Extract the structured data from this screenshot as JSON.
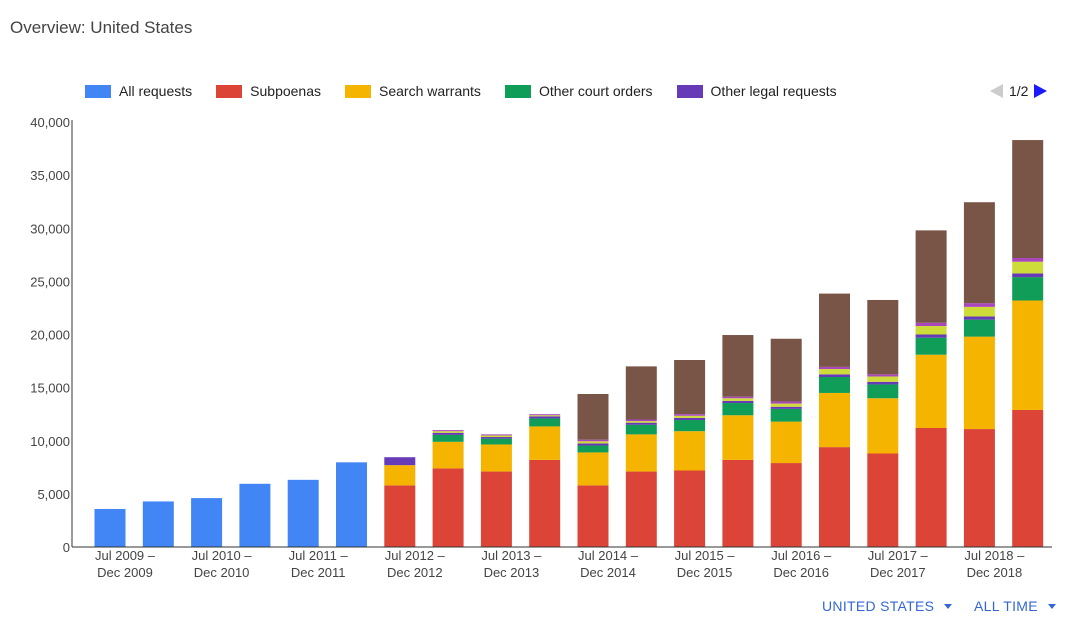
{
  "page": {
    "title": "Overview: United States",
    "pager_text": "1/2",
    "country_button": "UNITED STATES",
    "time_button": "ALL TIME"
  },
  "legend": [
    {
      "name": "All requests",
      "color": "#4285f4"
    },
    {
      "name": "Subpoenas",
      "color": "#db4437"
    },
    {
      "name": "Search warrants",
      "color": "#f4b400"
    },
    {
      "name": "Other court orders",
      "color": "#0f9d58"
    },
    {
      "name": "Other legal requests",
      "color": "#673ab7"
    }
  ],
  "chart_data": {
    "type": "bar",
    "stacked": true,
    "ylim": [
      0,
      40000
    ],
    "yticks": [
      "0",
      "5,000",
      "10,000",
      "15,000",
      "20,000",
      "25,000",
      "30,000",
      "35,000",
      "40,000"
    ],
    "ytick_values": [
      0,
      5000,
      10000,
      15000,
      20000,
      25000,
      30000,
      35000,
      40000
    ],
    "categories": [
      "Jul–Dec 2009",
      "Jan–Jun 2010",
      "Jul–Dec 2010",
      "Jan–Jun 2011",
      "Jul–Dec 2011",
      "Jan–Jun 2012",
      "Jul–Dec 2012",
      "Jan–Jun 2013",
      "Jul–Dec 2013",
      "Jan–Jun 2014",
      "Jul–Dec 2014",
      "Jan–Jun 2015",
      "Jul–Dec 2015",
      "Jan–Jun 2016",
      "Jul–Dec 2016",
      "Jan–Jun 2017",
      "Jul–Dec 2017",
      "Jan–Jun 2018",
      "Jul–Dec 2018",
      "Jan–Jun 2019"
    ],
    "xtick_labels": [
      {
        "index": 0,
        "line1": "Jul 2009 –",
        "line2": "Dec 2009"
      },
      {
        "index": 2,
        "line1": "Jul 2010 –",
        "line2": "Dec 2010"
      },
      {
        "index": 4,
        "line1": "Jul 2011 –",
        "line2": "Dec 2011"
      },
      {
        "index": 6,
        "line1": "Jul 2012 –",
        "line2": "Dec 2012"
      },
      {
        "index": 8,
        "line1": "Jul 2013 –",
        "line2": "Dec 2013"
      },
      {
        "index": 10,
        "line1": "Jul 2014 –",
        "line2": "Dec 2014"
      },
      {
        "index": 12,
        "line1": "Jul 2015 –",
        "line2": "Dec 2015"
      },
      {
        "index": 14,
        "line1": "Jul 2016 –",
        "line2": "Dec 2016"
      },
      {
        "index": 16,
        "line1": "Jul 2017 –",
        "line2": "Dec 2017"
      },
      {
        "index": 18,
        "line1": "Jul 2018 –",
        "line2": "Dec 2018"
      }
    ],
    "series": [
      {
        "name": "All requests",
        "color": "#4285f4",
        "values": [
          3580,
          4287,
          4601,
          5950,
          6321,
          7969,
          0,
          0,
          0,
          0,
          0,
          0,
          0,
          0,
          0,
          0,
          0,
          0,
          0,
          0
        ]
      },
      {
        "name": "Subpoenas",
        "color": "#db4437",
        "values": [
          0,
          0,
          0,
          0,
          0,
          0,
          5800,
          7400,
          7100,
          8200,
          5800,
          7100,
          7200,
          8200,
          7900,
          9400,
          8800,
          11200,
          11100,
          12900
        ]
      },
      {
        "name": "Search warrants",
        "color": "#f4b400",
        "values": [
          0,
          0,
          0,
          0,
          0,
          0,
          1900,
          2500,
          2550,
          3150,
          3100,
          3500,
          3700,
          4200,
          3900,
          5100,
          5200,
          6900,
          8700,
          10300
        ]
      },
      {
        "name": "Other court orders",
        "color": "#0f9d58",
        "values": [
          0,
          0,
          0,
          0,
          0,
          0,
          0,
          650,
          550,
          750,
          650,
          900,
          1050,
          1150,
          1200,
          1500,
          1300,
          1600,
          1600,
          2200
        ]
      },
      {
        "name": "Other legal requests",
        "color": "#673ab7",
        "values": [
          0,
          0,
          0,
          0,
          0,
          0,
          750,
          200,
          150,
          200,
          200,
          200,
          200,
          200,
          200,
          250,
          250,
          300,
          300,
          350
        ]
      },
      {
        "name": "",
        "color": "#cddc39",
        "values": [
          0,
          0,
          0,
          0,
          0,
          0,
          0,
          150,
          150,
          100,
          200,
          150,
          200,
          250,
          300,
          500,
          500,
          800,
          900,
          1100
        ]
      },
      {
        "name": "",
        "color": "#ab47bc",
        "values": [
          0,
          0,
          0,
          0,
          0,
          0,
          0,
          100,
          100,
          100,
          150,
          150,
          150,
          150,
          200,
          200,
          200,
          300,
          350,
          350
        ]
      },
      {
        "name": "",
        "color": "#795548",
        "values": [
          0,
          0,
          0,
          0,
          0,
          0,
          0,
          0,
          0,
          0,
          4300,
          5000,
          5100,
          5800,
          5900,
          6900,
          7000,
          8700,
          9500,
          11100
        ]
      }
    ]
  }
}
